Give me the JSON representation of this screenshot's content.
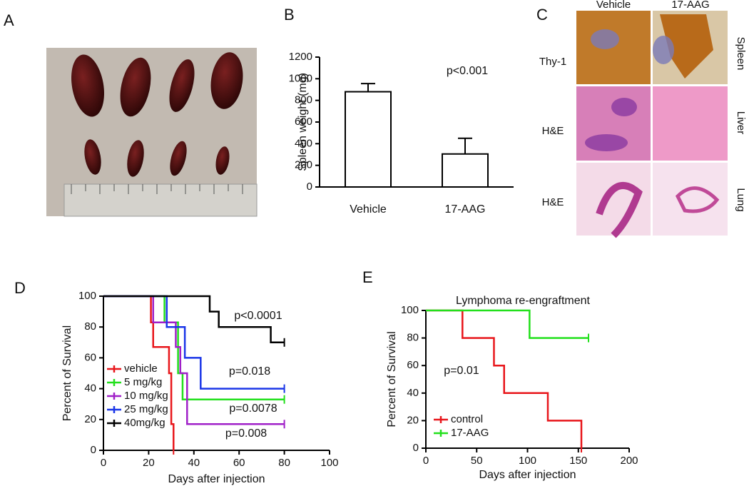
{
  "panels": {
    "a": "A",
    "b": "B",
    "c": "C",
    "d": "D",
    "e": "E"
  },
  "histology": {
    "columns": [
      "Vehicle",
      "17-AAG"
    ],
    "rows": [
      "Thy-1",
      "H&E",
      "H&E"
    ],
    "tissues": [
      "Spleen",
      "Liver",
      "Lung"
    ]
  },
  "chart_data": [
    {
      "type": "bar",
      "ylabel": "Spleen weight (mg)",
      "annotation": "p<0.001",
      "categories": [
        "Vehicle",
        "17-AAG"
      ],
      "values": [
        880,
        305
      ],
      "errors": [
        75,
        145
      ],
      "color": "#ffffff",
      "ylim": [
        0,
        1200
      ],
      "yticks": [
        0,
        200,
        400,
        600,
        800,
        1000,
        1200
      ]
    },
    {
      "type": "step",
      "xlabel": "Days after injection",
      "ylabel": "Percent of Survival",
      "annotations": [
        "p<0.0001",
        "p=0.018",
        "p=0.0078",
        "p=0.008"
      ],
      "xlim": [
        0,
        100
      ],
      "xticks": [
        0,
        20,
        40,
        60,
        80,
        100
      ],
      "ylim": [
        0,
        100
      ],
      "yticks": [
        0,
        20,
        40,
        60,
        80,
        100
      ],
      "legend": "lower left",
      "series": [
        {
          "name": "vehicle",
          "color": "#e8161b",
          "x": [
            0,
            21,
            22,
            29,
            30,
            31
          ],
          "values": [
            100,
            83,
            67,
            50,
            17,
            0
          ]
        },
        {
          "name": "5 mg/kg",
          "color": "#22e01c",
          "x": [
            0,
            27,
            33,
            35,
            80
          ],
          "values": [
            100,
            83,
            50,
            33,
            33
          ]
        },
        {
          "name": "10 mg/kg",
          "color": "#a020c8",
          "x": [
            0,
            22,
            32,
            34,
            37,
            80
          ],
          "values": [
            100,
            83,
            67,
            50,
            17,
            17
          ]
        },
        {
          "name": "25 mg/kg",
          "color": "#1a36e8",
          "x": [
            0,
            28,
            36,
            43,
            80
          ],
          "values": [
            100,
            80,
            60,
            40,
            40
          ]
        },
        {
          "name": "40mg/kg",
          "color": "#000000",
          "x": [
            0,
            47,
            51,
            74,
            80
          ],
          "values": [
            100,
            90,
            80,
            70,
            70
          ]
        }
      ]
    },
    {
      "type": "step",
      "title": "Lymphoma re-engraftment",
      "xlabel": "Days after injection",
      "ylabel": "Percent of Survival",
      "annotations": [
        "p=0.01"
      ],
      "xlim": [
        0,
        200
      ],
      "xticks": [
        0,
        50,
        100,
        150,
        200
      ],
      "ylim": [
        0,
        100
      ],
      "yticks": [
        0,
        20,
        40,
        60,
        80,
        100
      ],
      "legend": "lower left",
      "series": [
        {
          "name": "control",
          "color": "#e8161b",
          "x": [
            0,
            36,
            67,
            77,
            120,
            153
          ],
          "values": [
            100,
            80,
            60,
            40,
            20,
            0
          ]
        },
        {
          "name": "17-AAG",
          "color": "#22e01c",
          "x": [
            0,
            102,
            160
          ],
          "values": [
            100,
            80,
            80
          ]
        }
      ]
    }
  ]
}
